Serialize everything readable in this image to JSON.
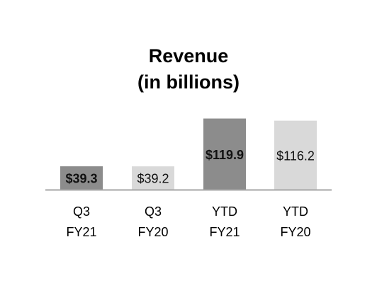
{
  "chart_data": {
    "type": "bar",
    "title": "Revenue",
    "subtitle": "(in billions)",
    "xlabel": "",
    "ylabel": "",
    "categories": [
      [
        "Q3",
        "FY21"
      ],
      [
        "Q3",
        "FY20"
      ],
      [
        "YTD",
        "FY21"
      ],
      [
        "YTD",
        "FY20"
      ]
    ],
    "values": [
      39.3,
      39.2,
      119.9,
      116.2
    ],
    "data_labels": [
      "$39.3",
      "$39.2",
      "$119.9",
      "$116.2"
    ],
    "label_bold": [
      true,
      false,
      true,
      false
    ],
    "bar_colors": [
      "#8c8c8c",
      "#d9d9d9",
      "#8c8c8c",
      "#d9d9d9"
    ],
    "ylim": [
      0,
      120
    ],
    "grid": false,
    "legend": "none",
    "axis_color": "#a6a6a6"
  }
}
